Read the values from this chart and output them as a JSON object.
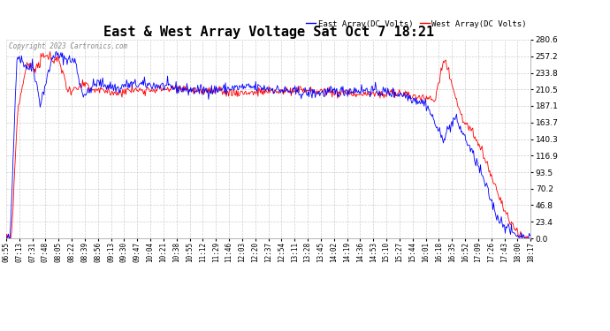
{
  "title": "East & West Array Voltage Sat Oct 7 18:21",
  "title_fontsize": 11,
  "copyright_text": "Copyright 2023 Cartronics.com",
  "legend_east": "East Array(DC Volts)",
  "legend_west": "West Array(DC Volts)",
  "east_color": "#0000ff",
  "west_color": "#ff0000",
  "background_color": "#ffffff",
  "plot_bg_color": "#ffffff",
  "grid_color": "#bbbbbb",
  "ylim": [
    0.0,
    280.6
  ],
  "yticks": [
    0.0,
    23.4,
    46.8,
    70.2,
    93.5,
    116.9,
    140.3,
    163.7,
    187.1,
    210.5,
    233.8,
    257.2,
    280.6
  ],
  "xtick_labels": [
    "06:55",
    "07:13",
    "07:31",
    "07:48",
    "08:05",
    "08:22",
    "08:39",
    "08:56",
    "09:13",
    "09:30",
    "09:47",
    "10:04",
    "10:21",
    "10:38",
    "10:55",
    "11:12",
    "11:29",
    "11:46",
    "12:03",
    "12:20",
    "12:37",
    "12:54",
    "13:11",
    "13:28",
    "13:45",
    "14:02",
    "14:19",
    "14:36",
    "14:53",
    "15:10",
    "15:27",
    "15:44",
    "16:01",
    "16:18",
    "16:35",
    "16:52",
    "17:09",
    "17:26",
    "17:43",
    "18:00",
    "18:17"
  ],
  "line_width": 0.6,
  "font_family": "monospace"
}
